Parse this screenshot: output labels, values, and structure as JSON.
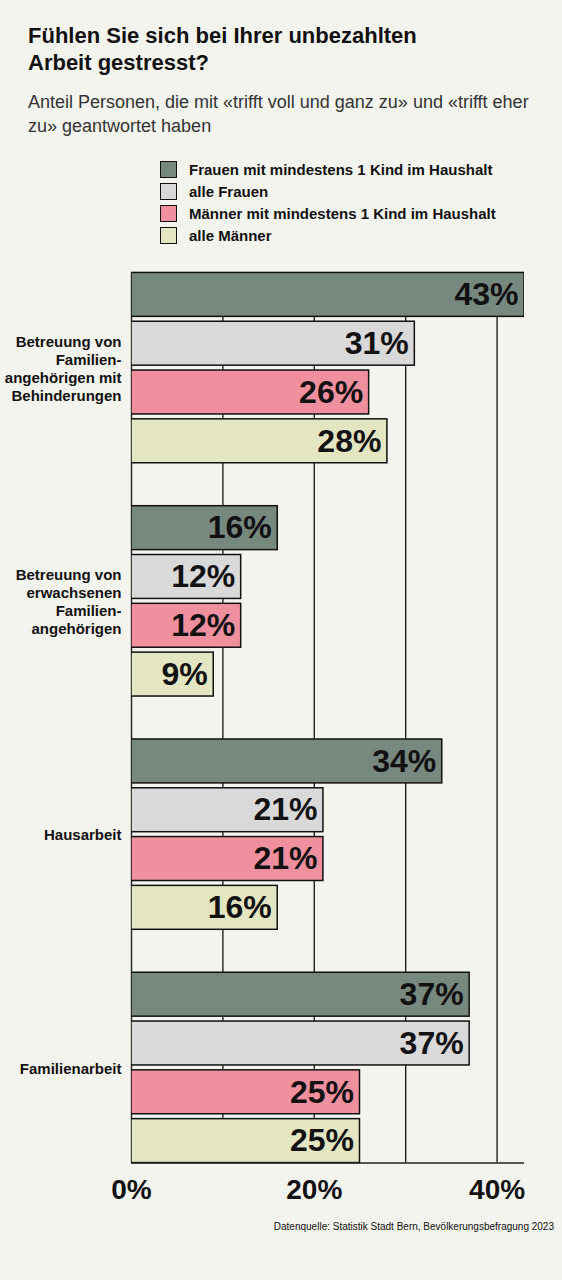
{
  "chart_data": {
    "type": "bar",
    "orientation": "horizontal",
    "title": "Fühlen Sie sich bei Ihrer unbezahlten Arbeit gestresst?",
    "subtitle": "Anteil Personen, die mit «trifft voll und ganz zu» und «trifft eher zu» geantwortet haben",
    "source": "Datenquelle: Statistik Stadt Bern, Bevölkerungsbefragung 2023",
    "categories": [
      "Betreuung von\nFamilien-\nangehörigen mit\nBehinderungen",
      "Betreuung von\nerwachsenen\nFamilien-\nangehörigen",
      "Hausarbeit",
      "Familienarbeit"
    ],
    "series": [
      {
        "name": "Frauen mit mindestens 1 Kind im Haushalt",
        "color": "#77887f",
        "values": [
          43,
          16,
          34,
          37
        ],
        "value_labels": [
          "43%",
          "16%",
          "34%",
          "37%"
        ]
      },
      {
        "name": "alle Frauen",
        "color": "#d9d9d9",
        "values": [
          31,
          12,
          21,
          37
        ],
        "value_labels": [
          "31%",
          "12%",
          "21%",
          "37%"
        ]
      },
      {
        "name": "Männer mit mindestens 1 Kind im Haushalt",
        "color": "#f0909f",
        "values": [
          26,
          12,
          21,
          25
        ],
        "value_labels": [
          "26%",
          "12%",
          "21%",
          "25%"
        ]
      },
      {
        "name": "alle Männer",
        "color": "#e4e6c2",
        "values": [
          28,
          9,
          16,
          25
        ],
        "value_labels": [
          "28%",
          "9%",
          "16%",
          "25%"
        ]
      }
    ],
    "xlim": [
      0,
      43
    ],
    "xticks": [
      {
        "value": 0,
        "label": "0%"
      },
      {
        "value": 20,
        "label": "20%"
      },
      {
        "value": 40,
        "label": "40%"
      }
    ],
    "grid": true,
    "data_labels": true,
    "tick_labels": "x",
    "legend": "top"
  }
}
